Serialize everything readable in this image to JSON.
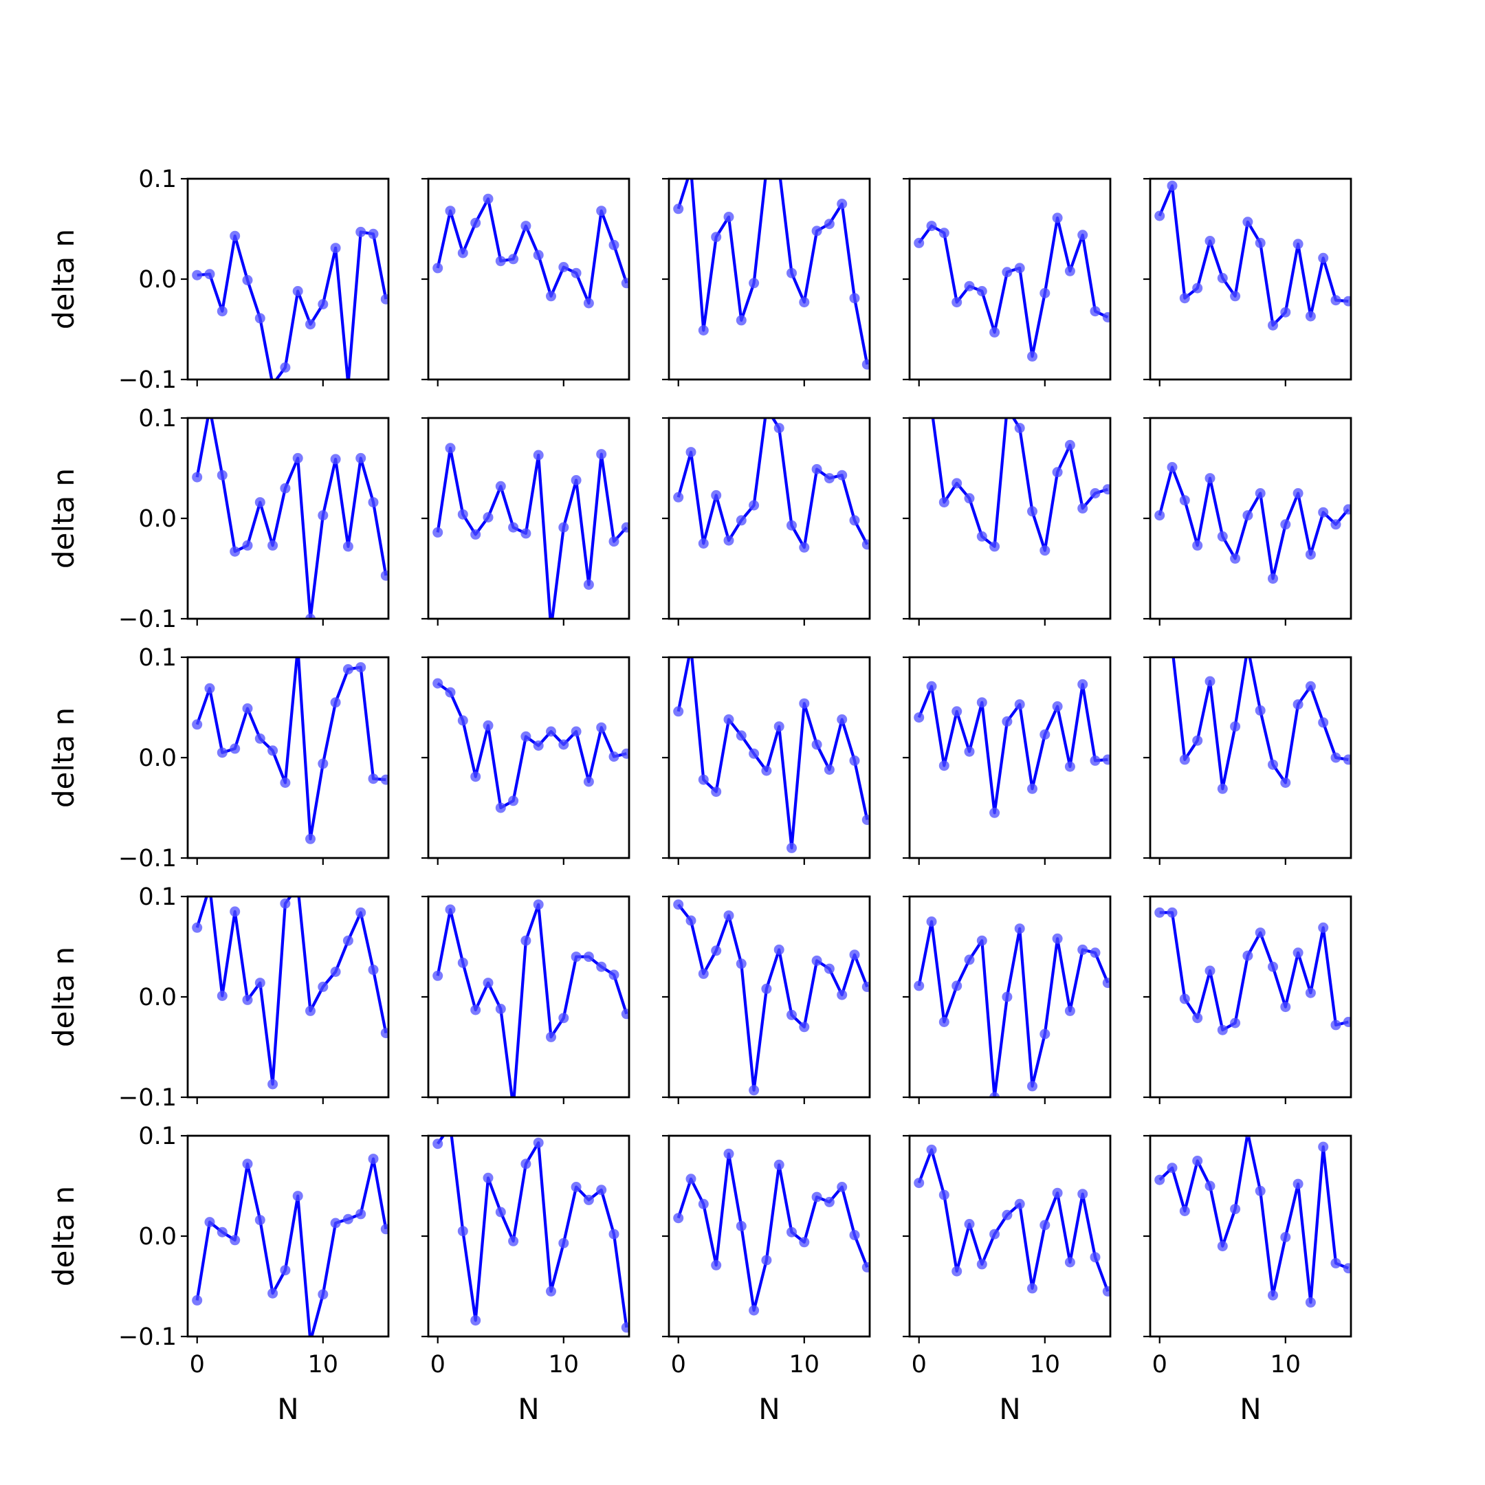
{
  "chart_data": {
    "type": "line",
    "layout": "5x5 grid of subplots (shared axes)",
    "xlabel": "N",
    "ylabel": "delta n",
    "xlim": [
      -0.75,
      15.2
    ],
    "ylim": [
      -0.1,
      0.1
    ],
    "x_ticks": [
      0,
      10
    ],
    "x_tick_labels": [
      "0",
      "10"
    ],
    "y_ticks": [
      -0.1,
      0.0,
      0.1
    ],
    "y_tick_labels": [
      "−0.1",
      "0.0",
      "0.1"
    ],
    "x": [
      0,
      1,
      2,
      3,
      4,
      5,
      6,
      7,
      8,
      9,
      10,
      11,
      12,
      13,
      14,
      15
    ],
    "line_color": "#0000ff",
    "marker_color": "#4d4dff",
    "grid": false,
    "legend": "none",
    "panels": [
      {
        "values": [
          0.004,
          0.005,
          -0.032,
          0.043,
          -0.001,
          -0.039,
          -0.105,
          -0.088,
          -0.012,
          -0.045,
          -0.025,
          0.031,
          -0.105,
          0.047,
          0.045,
          -0.02
        ]
      },
      {
        "values": [
          0.011,
          0.068,
          0.026,
          0.056,
          0.08,
          0.018,
          0.02,
          0.053,
          0.024,
          -0.017,
          0.012,
          0.006,
          -0.024,
          0.068,
          0.034,
          -0.004
        ]
      },
      {
        "values": [
          0.07,
          0.11,
          -0.051,
          0.042,
          0.062,
          -0.041,
          -0.004,
          0.11,
          0.11,
          0.006,
          -0.023,
          0.048,
          0.055,
          0.075,
          -0.019,
          -0.085
        ]
      },
      {
        "values": [
          0.036,
          0.053,
          0.046,
          -0.023,
          -0.007,
          -0.012,
          -0.053,
          0.007,
          0.011,
          -0.077,
          -0.014,
          0.061,
          0.008,
          0.044,
          -0.032,
          -0.038
        ]
      },
      {
        "values": [
          0.063,
          0.093,
          -0.019,
          -0.009,
          0.038,
          0.001,
          -0.017,
          0.057,
          0.036,
          -0.046,
          -0.033,
          0.035,
          -0.037,
          0.021,
          -0.021,
          -0.022
        ]
      },
      {
        "values": [
          0.041,
          0.11,
          0.043,
          -0.033,
          -0.027,
          0.016,
          -0.027,
          0.03,
          0.06,
          -0.1,
          0.003,
          0.059,
          -0.028,
          0.06,
          0.016,
          -0.057
        ]
      },
      {
        "values": [
          -0.014,
          0.07,
          0.004,
          -0.016,
          0.001,
          0.032,
          -0.009,
          -0.015,
          0.063,
          -0.11,
          -0.009,
          0.038,
          -0.066,
          0.064,
          -0.023,
          -0.009
        ]
      },
      {
        "values": [
          0.021,
          0.066,
          -0.025,
          0.023,
          -0.022,
          -0.002,
          0.013,
          0.11,
          0.09,
          -0.007,
          -0.029,
          0.049,
          0.04,
          0.043,
          -0.002,
          -0.026
        ]
      },
      {
        "values": [
          0.11,
          0.11,
          0.016,
          0.035,
          0.02,
          -0.018,
          -0.028,
          0.11,
          0.09,
          0.007,
          -0.032,
          0.046,
          0.073,
          0.01,
          0.025,
          0.029
        ]
      },
      {
        "values": [
          0.003,
          0.051,
          0.018,
          -0.027,
          0.04,
          -0.018,
          -0.04,
          0.003,
          0.025,
          -0.06,
          -0.006,
          0.025,
          -0.036,
          0.006,
          -0.006,
          0.009
        ]
      },
      {
        "values": [
          0.033,
          0.069,
          0.005,
          0.009,
          0.049,
          0.019,
          0.007,
          -0.025,
          0.11,
          -0.081,
          -0.006,
          0.055,
          0.088,
          0.09,
          -0.021,
          -0.022
        ]
      },
      {
        "values": [
          0.074,
          0.065,
          0.037,
          -0.019,
          0.032,
          -0.05,
          -0.043,
          0.021,
          0.012,
          0.026,
          0.013,
          0.026,
          -0.024,
          0.03,
          0.001,
          0.004
        ]
      },
      {
        "values": [
          0.046,
          0.11,
          -0.022,
          -0.034,
          0.038,
          0.022,
          0.004,
          -0.013,
          0.031,
          -0.09,
          0.054,
          0.013,
          -0.012,
          0.038,
          -0.003,
          -0.062
        ]
      },
      {
        "values": [
          0.04,
          0.071,
          -0.008,
          0.046,
          0.006,
          0.055,
          -0.055,
          0.036,
          0.053,
          -0.031,
          0.023,
          0.051,
          -0.009,
          0.073,
          -0.003,
          -0.002
        ]
      },
      {
        "values": [
          0.11,
          0.11,
          -0.002,
          0.017,
          0.076,
          -0.031,
          0.031,
          0.11,
          0.047,
          -0.007,
          -0.025,
          0.053,
          0.071,
          0.035,
          0.0,
          -0.002
        ]
      },
      {
        "values": [
          0.069,
          0.11,
          0.001,
          0.085,
          -0.003,
          0.014,
          -0.087,
          0.093,
          0.11,
          -0.014,
          0.01,
          0.025,
          0.056,
          0.084,
          0.027,
          -0.036
        ]
      },
      {
        "values": [
          0.021,
          0.087,
          0.034,
          -0.013,
          0.014,
          -0.012,
          -0.11,
          0.056,
          0.092,
          -0.04,
          -0.021,
          0.04,
          0.04,
          0.03,
          0.022,
          -0.017
        ]
      },
      {
        "values": [
          0.092,
          0.076,
          0.023,
          0.046,
          0.081,
          0.033,
          -0.093,
          0.008,
          0.047,
          -0.018,
          -0.03,
          0.036,
          0.028,
          0.002,
          0.042,
          0.01
        ]
      },
      {
        "values": [
          0.011,
          0.075,
          -0.025,
          0.011,
          0.037,
          0.056,
          -0.1,
          0.0,
          0.068,
          -0.089,
          -0.037,
          0.058,
          -0.014,
          0.047,
          0.044,
          0.014
        ]
      },
      {
        "values": [
          0.084,
          0.084,
          -0.002,
          -0.021,
          0.026,
          -0.033,
          -0.026,
          0.041,
          0.064,
          0.03,
          -0.01,
          0.044,
          0.004,
          0.069,
          -0.028,
          -0.025
        ]
      },
      {
        "values": [
          -0.064,
          0.014,
          0.004,
          -0.004,
          0.072,
          0.016,
          -0.057,
          -0.034,
          0.04,
          -0.105,
          -0.058,
          0.013,
          0.017,
          0.022,
          0.077,
          0.007
        ]
      },
      {
        "values": [
          0.092,
          0.11,
          0.005,
          -0.084,
          0.058,
          0.024,
          -0.005,
          0.072,
          0.093,
          -0.055,
          -0.007,
          0.049,
          0.036,
          0.046,
          0.002,
          -0.091
        ]
      },
      {
        "values": [
          0.018,
          0.057,
          0.032,
          -0.029,
          0.082,
          0.01,
          -0.074,
          -0.024,
          0.071,
          0.004,
          -0.006,
          0.039,
          0.034,
          0.049,
          0.001,
          -0.031
        ]
      },
      {
        "values": [
          0.053,
          0.086,
          0.041,
          -0.035,
          0.012,
          -0.028,
          0.002,
          0.021,
          0.032,
          -0.052,
          0.011,
          0.043,
          -0.026,
          0.042,
          -0.021,
          -0.055
        ]
      },
      {
        "values": [
          0.056,
          0.068,
          0.025,
          0.075,
          0.05,
          -0.01,
          0.027,
          0.103,
          0.045,
          -0.059,
          -0.001,
          0.052,
          -0.066,
          0.089,
          -0.027,
          -0.032
        ]
      }
    ]
  }
}
